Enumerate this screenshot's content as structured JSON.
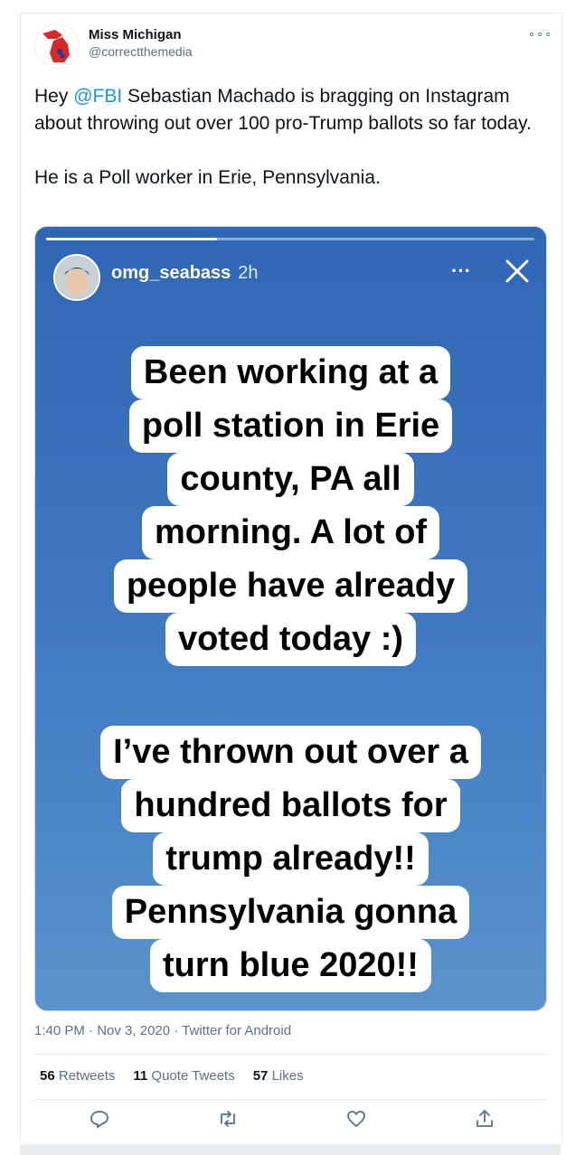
{
  "author": {
    "name": "Miss Michigan",
    "handle": "@correctthemedia"
  },
  "tweet": {
    "lines": [
      "Hey ",
      "@FBI",
      " Sebastian Machado is bragging on Instagram about throwing out over 100 pro-Trump ballots so far today."
    ],
    "second_paragraph": "He is a Poll worker in Erie, Pennsylvania."
  },
  "story": {
    "username": "omg_seabass",
    "time": "2h",
    "progress": 0.35,
    "block1": [
      "Been working at a",
      "poll station in Erie",
      "county, PA all",
      "morning. A lot of",
      "people have already",
      "voted today :)"
    ],
    "block2": [
      "I’ve thrown out over a",
      "hundred ballots for",
      "trump already!!",
      "Pennsylvania gonna",
      "turn blue 2020!!"
    ]
  },
  "meta": {
    "time": "1:40 PM",
    "date": "Nov 3, 2020",
    "source": "Twitter for Android"
  },
  "stats": {
    "retweets_count": "56",
    "retweets_label": "Retweets",
    "quotes_count": "11",
    "quotes_label": "Quote Tweets",
    "likes_count": "57",
    "likes_label": "Likes"
  },
  "colors": {
    "accent": "#1b95e0",
    "muted": "#5b7083",
    "story_bg": "#3c74bd"
  },
  "icons": [
    "reply-icon",
    "retweet-icon",
    "like-icon",
    "share-icon",
    "more-icon",
    "close-icon"
  ]
}
